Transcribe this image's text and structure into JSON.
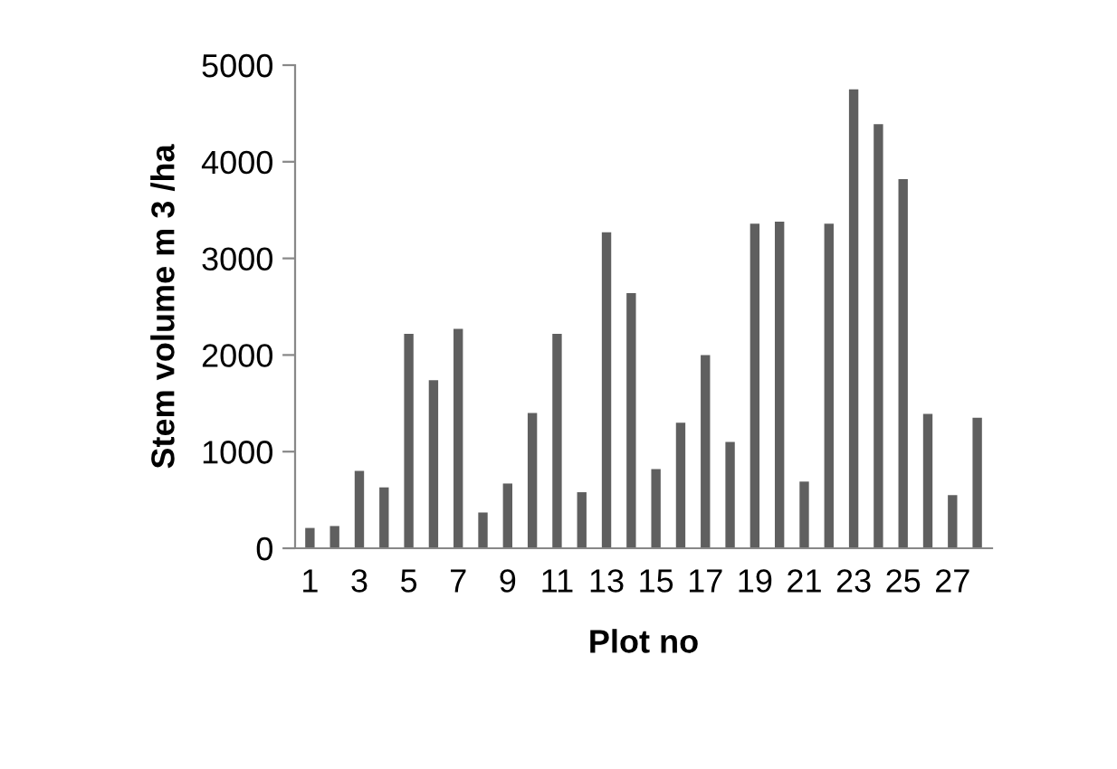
{
  "chart_data": {
    "type": "bar",
    "xlabel": "Plot no",
    "ylabel": "Stem volume m 3 /ha",
    "categories": [
      "1",
      null,
      "3",
      null,
      "5",
      null,
      "7",
      null,
      "9",
      null,
      "11",
      null,
      "13",
      null,
      "15",
      null,
      "17",
      null,
      "19",
      null,
      "21",
      null,
      "23",
      null,
      "25",
      null,
      "27",
      null
    ],
    "values": [
      210,
      230,
      800,
      630,
      2220,
      1740,
      2270,
      370,
      670,
      1400,
      2220,
      580,
      3270,
      2640,
      820,
      1300,
      2000,
      1100,
      3360,
      3380,
      690,
      3360,
      4750,
      4390,
      3820,
      1390,
      550,
      1350
    ],
    "color": "#5f5f5f",
    "ylim": [
      0,
      5000
    ],
    "yticks": [
      0,
      1000,
      2000,
      3000,
      4000,
      5000
    ],
    "grid": false,
    "legend": false
  }
}
